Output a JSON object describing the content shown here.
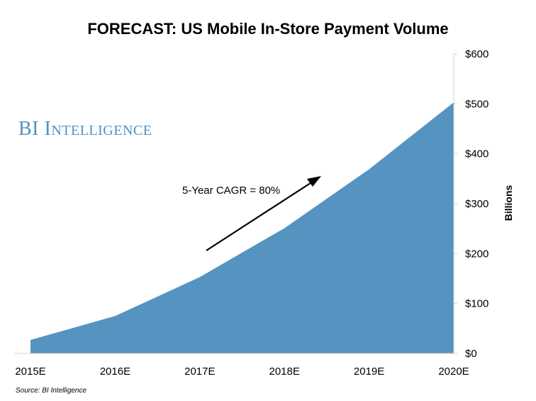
{
  "chart_data": {
    "type": "area",
    "title": "FORECAST: US Mobile In-Store Payment Volume",
    "categories": [
      "2015E",
      "2016E",
      "2017E",
      "2018E",
      "2019E",
      "2020E"
    ],
    "series": [
      {
        "values": [
          27,
          75,
          153,
          251,
          369,
          503
        ]
      }
    ],
    "ylabel": "Billions",
    "xlabel": "",
    "ylim": [
      0,
      600
    ],
    "yticks": [
      0,
      100,
      200,
      300,
      400,
      500,
      600
    ],
    "ytick_labels": [
      "$0",
      "$100",
      "$200",
      "$300",
      "$400",
      "$500",
      "$600"
    ],
    "y_axis_position": "right",
    "grid": false,
    "legend": "none",
    "annotation": "5-Year CAGR = 80%",
    "fill_color": "#5593c1"
  },
  "watermark": "BI Intelligence",
  "source": "Source: BI Intelligence"
}
